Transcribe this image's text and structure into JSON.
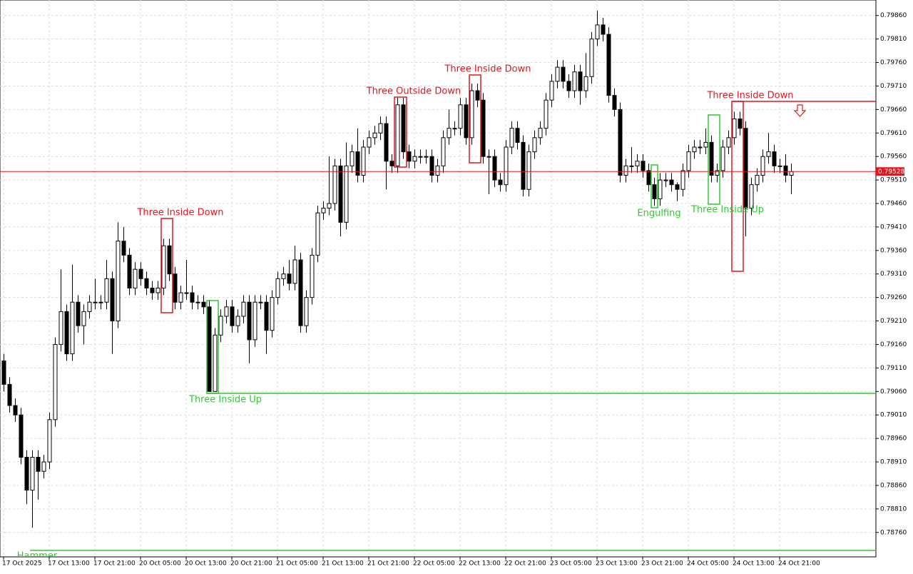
{
  "chart_data": {
    "type": "candlestick",
    "categories": [
      "17 Oct 2025",
      null,
      null,
      null,
      null,
      null,
      null,
      null,
      "17 Oct 13:00",
      null,
      null,
      null,
      null,
      null,
      null,
      null,
      "17 Oct 21:00",
      null,
      null,
      null,
      null,
      null,
      null,
      null,
      "20 Oct 05:00",
      null,
      null,
      null,
      null,
      null,
      null,
      null,
      "20 Oct 13:00",
      null,
      null,
      null,
      null,
      null,
      null,
      null,
      "20 Oct 21:00",
      null,
      null,
      null,
      null,
      null,
      null,
      null,
      "21 Oct 05:00",
      null,
      null,
      null,
      null,
      null,
      null,
      null,
      "21 Oct 13:00",
      null,
      null,
      null,
      null,
      null,
      null,
      null,
      "21 Oct 21:00",
      null,
      null,
      null,
      null,
      null,
      null,
      null,
      "22 Oct 05:00",
      null,
      null,
      null,
      null,
      null,
      null,
      null,
      "22 Oct 13:00",
      null,
      null,
      null,
      null,
      null,
      null,
      null,
      "22 Oct 21:00",
      null,
      null,
      null,
      null,
      null,
      null,
      null,
      "23 Oct 05:00",
      null,
      null,
      null,
      null,
      null,
      null,
      null,
      "23 Oct 13:00",
      null,
      null,
      null,
      null,
      null,
      null,
      null,
      "23 Oct 21:00",
      null,
      null,
      null,
      null,
      null,
      null,
      null,
      "24 Oct 05:00",
      null,
      null,
      null,
      null,
      null,
      null,
      null,
      "24 Oct 13:00",
      null,
      null,
      null,
      null,
      null,
      null,
      null,
      "24 Oct 21:00",
      null,
      null
    ],
    "open": [
      0.79125,
      0.79075,
      0.7903,
      0.7901,
      0.7892,
      0.7885,
      0.7892,
      0.7889,
      0.7891,
      0.79,
      0.7916,
      0.7923,
      0.7914,
      0.7925,
      0.792,
      0.7923,
      0.7925,
      0.7925,
      0.7925,
      0.793,
      0.7921,
      0.7938,
      0.7935,
      0.7928,
      0.7932,
      0.793,
      0.7928,
      0.7927,
      0.7928,
      0.7937,
      0.7931,
      0.7925,
      0.7927,
      0.7927,
      0.7925,
      0.7925,
      0.7924,
      0.7906,
      0.7918,
      0.7922,
      0.7924,
      0.792,
      0.7922,
      0.7925,
      0.7917,
      0.7925,
      0.7925,
      0.7919,
      0.7926,
      0.793,
      0.7931,
      0.7929,
      0.7934,
      0.792,
      0.7926,
      0.7935,
      0.7944,
      0.7945,
      0.7946,
      0.7954,
      0.7942,
      0.7954,
      0.7957,
      0.7952,
      0.7958,
      0.796,
      0.7961,
      0.7963,
      0.7955,
      0.7954,
      0.7967,
      0.7957,
      0.7955,
      0.7956,
      0.7956,
      0.7956,
      0.7952,
      0.7954,
      0.796,
      0.7962,
      0.7962,
      0.7967,
      0.796,
      0.797,
      0.7968,
      0.7956,
      0.7956,
      0.7951,
      0.795,
      0.7958,
      0.7962,
      0.7959,
      0.7949,
      0.7957,
      0.796,
      0.7962,
      0.7968,
      0.7972,
      0.7975,
      0.7972,
      0.797,
      0.7974,
      0.797,
      0.7973,
      0.7981,
      0.7984,
      0.7982,
      0.7969,
      0.7966,
      0.7952,
      0.7954,
      0.7954,
      0.7955,
      0.7953,
      0.795,
      0.7947,
      0.7951,
      0.7951,
      0.795,
      0.7949,
      0.7953,
      0.7957,
      0.7958,
      0.7958,
      0.7959,
      0.7952,
      0.7953,
      0.7958,
      0.796,
      0.7964,
      0.7962,
      0.7945,
      0.795,
      0.7952,
      0.7956,
      0.7957,
      0.7954,
      0.7954,
      0.7952
    ],
    "high": [
      0.7914,
      0.7909,
      0.79045,
      0.79025,
      0.78935,
      0.78935,
      0.78935,
      0.78925,
      0.79015,
      0.79175,
      0.7932,
      0.79245,
      0.7933,
      0.79265,
      0.79245,
      0.79265,
      0.793,
      0.79265,
      0.7934,
      0.79315,
      0.7942,
      0.7941,
      0.79365,
      0.79335,
      0.79335,
      0.79315,
      0.79295,
      0.79295,
      0.79385,
      0.79385,
      0.79325,
      0.79285,
      0.7934,
      0.79285,
      0.79265,
      0.79265,
      0.79255,
      0.79195,
      0.79235,
      0.79255,
      0.79255,
      0.79235,
      0.79265,
      0.79265,
      0.79265,
      0.79265,
      0.79265,
      0.79275,
      0.79315,
      0.79325,
      0.7934,
      0.7937,
      0.79355,
      0.79275,
      0.79365,
      0.79455,
      0.79465,
      0.7956,
      0.79555,
      0.79555,
      0.7959,
      0.79585,
      0.7962,
      0.79595,
      0.79615,
      0.79625,
      0.79645,
      0.79645,
      0.79565,
      0.79685,
      0.79685,
      0.79585,
      0.79575,
      0.79575,
      0.79575,
      0.79575,
      0.79555,
      0.79615,
      0.7966,
      0.79635,
      0.79685,
      0.79685,
      0.79715,
      0.79715,
      0.79695,
      0.79575,
      0.79575,
      0.79525,
      0.79595,
      0.79635,
      0.79635,
      0.79605,
      0.79585,
      0.79615,
      0.79635,
      0.79695,
      0.79735,
      0.79765,
      0.79765,
      0.79735,
      0.79755,
      0.79755,
      0.7978,
      0.79825,
      0.7987,
      0.79855,
      0.79835,
      0.79705,
      0.79675,
      0.79555,
      0.7958,
      0.79565,
      0.79565,
      0.79545,
      0.79515,
      0.79525,
      0.79525,
      0.79525,
      0.79505,
      0.79545,
      0.79585,
      0.79595,
      0.79595,
      0.7962,
      0.79605,
      0.79545,
      0.79595,
      0.79615,
      0.79655,
      0.79655,
      0.79635,
      0.79515,
      0.79535,
      0.79575,
      0.7961,
      0.79585,
      0.79555,
      0.79565,
      0.79545
    ],
    "low": [
      0.7906,
      0.79015,
      0.78995,
      0.78905,
      0.7882,
      0.7877,
      0.7883,
      0.78875,
      0.78895,
      0.78985,
      0.79145,
      0.79125,
      0.79125,
      0.79185,
      0.7916,
      0.79215,
      0.79235,
      0.79235,
      0.79235,
      0.7914,
      0.79195,
      0.79335,
      0.79265,
      0.79265,
      0.79285,
      0.79265,
      0.79255,
      0.79255,
      0.79265,
      0.79295,
      0.79235,
      0.79235,
      0.79255,
      0.79235,
      0.79235,
      0.79225,
      0.7906,
      0.7906,
      0.79165,
      0.79205,
      0.79185,
      0.79185,
      0.79205,
      0.7912,
      0.79155,
      0.79235,
      0.7914,
      0.79175,
      0.79245,
      0.79285,
      0.79275,
      0.79275,
      0.79185,
      0.79185,
      0.79245,
      0.79335,
      0.79425,
      0.79435,
      0.79445,
      0.7939,
      0.79405,
      0.79525,
      0.79505,
      0.79505,
      0.79565,
      0.79585,
      0.79595,
      0.7949,
      0.79525,
      0.79525,
      0.79555,
      0.79535,
      0.79535,
      0.79545,
      0.79545,
      0.79505,
      0.79505,
      0.79525,
      0.79585,
      0.79605,
      0.79605,
      0.79585,
      0.79585,
      0.79665,
      0.79545,
      0.7948,
      0.79495,
      0.79485,
      0.79485,
      0.79565,
      0.79575,
      0.79475,
      0.79475,
      0.79555,
      0.79585,
      0.79605,
      0.79665,
      0.79705,
      0.79705,
      0.79685,
      0.79685,
      0.7967,
      0.79685,
      0.79715,
      0.79795,
      0.79805,
      0.79675,
      0.79645,
      0.79505,
      0.79505,
      0.79525,
      0.79525,
      0.79515,
      0.79485,
      0.79455,
      0.79455,
      0.79495,
      0.79485,
      0.79465,
      0.79475,
      0.79515,
      0.79555,
      0.79565,
      0.79565,
      0.79505,
      0.79505,
      0.79515,
      0.79565,
      0.79585,
      0.79605,
      0.7939,
      0.79435,
      0.79485,
      0.79505,
      0.79545,
      0.79525,
      0.79525,
      0.79505,
      0.7948
    ],
    "close": [
      0.79075,
      0.7903,
      0.7901,
      0.7892,
      0.7885,
      0.7892,
      0.7889,
      0.7891,
      0.79,
      0.7916,
      0.7923,
      0.7914,
      0.7925,
      0.792,
      0.7923,
      0.7925,
      0.7925,
      0.7925,
      0.793,
      0.7921,
      0.7938,
      0.7935,
      0.7928,
      0.7932,
      0.793,
      0.7928,
      0.7927,
      0.7928,
      0.7937,
      0.7931,
      0.7925,
      0.7927,
      0.7927,
      0.7925,
      0.7925,
      0.7924,
      0.7906,
      0.7918,
      0.7922,
      0.7924,
      0.792,
      0.7922,
      0.7925,
      0.7917,
      0.7925,
      0.7925,
      0.7919,
      0.7926,
      0.793,
      0.7931,
      0.7929,
      0.7934,
      0.792,
      0.7926,
      0.7935,
      0.7944,
      0.7945,
      0.7946,
      0.7954,
      0.7942,
      0.7954,
      0.7957,
      0.7952,
      0.7958,
      0.796,
      0.7961,
      0.7963,
      0.7955,
      0.7954,
      0.7967,
      0.7957,
      0.7955,
      0.7956,
      0.7956,
      0.7956,
      0.7952,
      0.7954,
      0.796,
      0.7962,
      0.7962,
      0.7967,
      0.796,
      0.797,
      0.7968,
      0.7956,
      0.7956,
      0.7951,
      0.795,
      0.7958,
      0.7962,
      0.7959,
      0.7949,
      0.7957,
      0.796,
      0.7962,
      0.7968,
      0.7972,
      0.7975,
      0.7972,
      0.797,
      0.7974,
      0.797,
      0.7973,
      0.7981,
      0.7984,
      0.7982,
      0.7969,
      0.7966,
      0.7952,
      0.7954,
      0.7954,
      0.7955,
      0.7953,
      0.795,
      0.7947,
      0.7951,
      0.7951,
      0.795,
      0.7949,
      0.7953,
      0.7957,
      0.7958,
      0.7958,
      0.7959,
      0.7952,
      0.7953,
      0.7958,
      0.796,
      0.7964,
      0.7962,
      0.7945,
      0.795,
      0.7952,
      0.7956,
      0.7957,
      0.7954,
      0.7954,
      0.7952,
      0.79528
    ],
    "up_color": "#ffffff",
    "down_color": "#000000",
    "ylim": [
      0.78708,
      0.79893
    ],
    "yticks": [
      {
        "value": 0.7986,
        "label": "0.79860"
      },
      {
        "value": 0.7981,
        "label": "0.79810"
      },
      {
        "value": 0.7976,
        "label": "0.79760"
      },
      {
        "value": 0.7971,
        "label": "0.79710"
      },
      {
        "value": 0.7966,
        "label": "0.79660"
      },
      {
        "value": 0.7961,
        "label": "0.79610"
      },
      {
        "value": 0.7956,
        "label": "0.79560"
      },
      {
        "value": 0.7951,
        "label": "0.79510"
      },
      {
        "value": 0.7946,
        "label": "0.79460"
      },
      {
        "value": 0.7941,
        "label": "0.79410"
      },
      {
        "value": 0.7936,
        "label": "0.79360"
      },
      {
        "value": 0.7931,
        "label": "0.79310"
      },
      {
        "value": 0.7926,
        "label": "0.79260"
      },
      {
        "value": 0.7921,
        "label": "0.79210"
      },
      {
        "value": 0.7916,
        "label": "0.79160"
      },
      {
        "value": 0.7911,
        "label": "0.79110"
      },
      {
        "value": 0.7906,
        "label": "0.79060"
      },
      {
        "value": 0.7901,
        "label": "0.79010"
      },
      {
        "value": 0.7896,
        "label": "0.78960"
      },
      {
        "value": 0.7891,
        "label": "0.78910"
      },
      {
        "value": 0.7886,
        "label": "0.78860"
      },
      {
        "value": 0.7881,
        "label": "0.78810"
      },
      {
        "value": 0.7876,
        "label": "0.78760"
      }
    ],
    "grid": true,
    "last_price": 0.79528,
    "last_price_color": "#e8141b",
    "annotations": [
      {
        "text": "Three Inside Down",
        "color": "#e8141b"
      },
      {
        "text": "Three Outside Down",
        "color": "#e8141b"
      },
      {
        "text": "Three Inside Down",
        "color": "#e8141b"
      },
      {
        "text": "Three Inside Down",
        "color": "#e8141b"
      },
      {
        "text": "Three Inside Up",
        "color": "#32c832"
      },
      {
        "text": "Engulfing",
        "color": "#32c832"
      },
      {
        "text": "Three Inside Up",
        "color": "#32c832"
      },
      {
        "text": "Hammer",
        "color": "#32c832"
      }
    ]
  }
}
